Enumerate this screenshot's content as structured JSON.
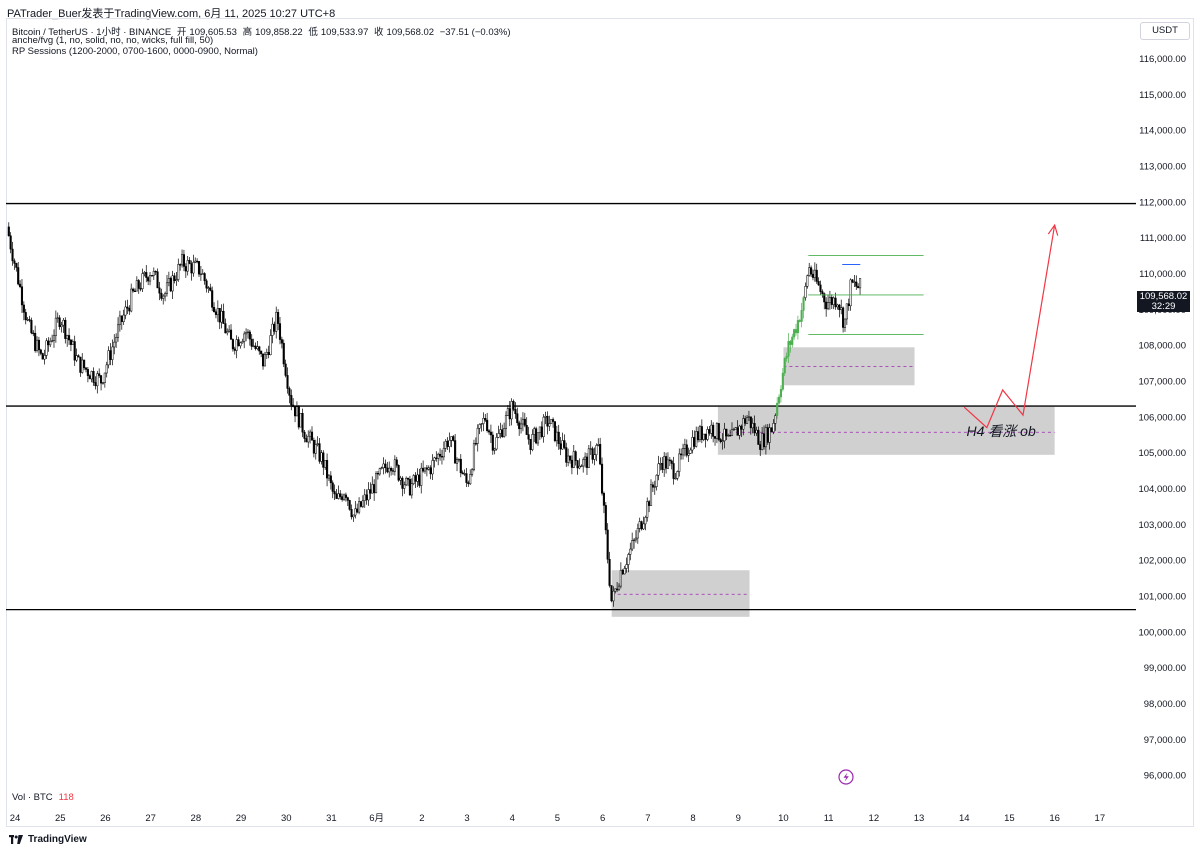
{
  "header": {
    "publisher_line": "PATrader_Buer发表于TradingView.com,  6月 11, 2025 10:27 UTC+8",
    "symbol_line": "Bitcoin / TetherUS · 1小时 · BINANCE",
    "ohlc": {
      "open_label": "开",
      "open": "109,605.53",
      "high_label": "高",
      "high": "109,858.22",
      "low_label": "低",
      "low": "109,533.97",
      "close_label": "收",
      "close": "109,568.02",
      "change": "−37.51 (−0.03%)"
    },
    "indicator1": "anche/fvg (1, no, solid, no, no, wicks, full fill, 50)",
    "indicator2": "RP Sessions (1200-2000, 0700-1600, 0000-0900, Normal)"
  },
  "price_axis": {
    "unit": "USDT",
    "current_price": "109,568.02",
    "countdown": "32:29"
  },
  "volume": {
    "label": "Vol · BTC",
    "value": "118"
  },
  "footer": {
    "brand": "TradingView"
  },
  "icons": [
    "tradingview-logo-icon",
    "lightning-icon"
  ],
  "colors": {
    "up": "#ffffff",
    "down": "#000000",
    "recent": "#4caf50",
    "zone": "#c8c8c8",
    "arrow": "#f23645",
    "midline": "#9c27b0",
    "rangeline": "#4caf50",
    "hline": "#000000"
  },
  "chart_data": {
    "type": "candlestick",
    "title": "Bitcoin / TetherUS · 1小时 · BINANCE",
    "y_ticks": [
      96000,
      97000,
      98000,
      99000,
      100000,
      101000,
      102000,
      103000,
      104000,
      105000,
      106000,
      107000,
      108000,
      109000,
      110000,
      111000,
      112000,
      113000,
      114000,
      115000,
      116000
    ],
    "y_tick_labels": [
      "96,000.00",
      "97,000.00",
      "98,000.00",
      "99,000.00",
      "100,000.00",
      "101,000.00",
      "102,000.00",
      "103,000.00",
      "104,000.00",
      "105,000.00",
      "106,000.00",
      "107,000.00",
      "108,000.00",
      "109,000.00",
      "110,000.00",
      "111,000.00",
      "112,000.00",
      "113,000.00",
      "114,000.00",
      "115,000.00",
      "116,000.00"
    ],
    "ylim": [
      95700,
      117100
    ],
    "x_ticks": [
      "24",
      "25",
      "26",
      "27",
      "28",
      "29",
      "30",
      "31",
      "6月",
      "2",
      "3",
      "4",
      "5",
      "6",
      "7",
      "8",
      "9",
      "10",
      "11",
      "12",
      "13",
      "14",
      "15",
      "16",
      "17"
    ],
    "x_tick_days": [
      0,
      1,
      2,
      3,
      4,
      5,
      6,
      7,
      8,
      9,
      10,
      11,
      12,
      13,
      14,
      15,
      16,
      17,
      18,
      19,
      20,
      21,
      22,
      23,
      24
    ],
    "xlim_days": [
      -0.2,
      24.8
    ],
    "anchors": [
      [
        -0.18,
        111300
      ],
      [
        0.3,
        108500
      ],
      [
        0.6,
        107600
      ],
      [
        1.0,
        108800
      ],
      [
        1.4,
        107500
      ],
      [
        1.9,
        107000
      ],
      [
        2.3,
        108500
      ],
      [
        2.6,
        109400
      ],
      [
        3.0,
        110100
      ],
      [
        3.3,
        109400
      ],
      [
        3.7,
        110300
      ],
      [
        4.1,
        110100
      ],
      [
        4.4,
        109200
      ],
      [
        4.8,
        108000
      ],
      [
        5.1,
        108400
      ],
      [
        5.5,
        107500
      ],
      [
        5.8,
        108800
      ],
      [
        6.1,
        106500
      ],
      [
        6.4,
        105600
      ],
      [
        6.8,
        104800
      ],
      [
        7.1,
        103600
      ],
      [
        7.3,
        104000
      ],
      [
        7.5,
        103200
      ],
      [
        7.9,
        104000
      ],
      [
        8.3,
        104800
      ],
      [
        8.7,
        104000
      ],
      [
        9.2,
        104600
      ],
      [
        9.6,
        105400
      ],
      [
        10.0,
        104100
      ],
      [
        10.2,
        105300
      ],
      [
        10.4,
        106000
      ],
      [
        10.6,
        105200
      ],
      [
        11.0,
        106300
      ],
      [
        11.4,
        105300
      ],
      [
        11.8,
        105900
      ],
      [
        12.2,
        104900
      ],
      [
        12.6,
        104700
      ],
      [
        12.9,
        105200
      ],
      [
        13.05,
        103000
      ],
      [
        13.2,
        100800
      ],
      [
        13.4,
        101700
      ],
      [
        13.7,
        102500
      ],
      [
        14.0,
        103600
      ],
      [
        14.3,
        104800
      ],
      [
        14.6,
        104500
      ],
      [
        15.0,
        105400
      ],
      [
        15.4,
        105700
      ],
      [
        15.8,
        105300
      ],
      [
        16.2,
        106000
      ],
      [
        16.5,
        105300
      ],
      [
        16.75,
        105700
      ],
      [
        16.95,
        107000
      ],
      [
        17.1,
        107900
      ],
      [
        17.3,
        108600
      ],
      [
        17.45,
        109200
      ],
      [
        17.55,
        110200
      ],
      [
        17.75,
        109700
      ],
      [
        17.95,
        109200
      ],
      [
        18.2,
        109300
      ],
      [
        18.35,
        108600
      ],
      [
        18.5,
        109700
      ],
      [
        18.7,
        109600
      ]
    ],
    "horizontal_lines": [
      111950,
      106300,
      100620
    ],
    "ob_zones": [
      {
        "from_day": 15.55,
        "to_day": 23.0,
        "low": 104940,
        "high": 106280,
        "mid": 105570
      },
      {
        "from_day": 17.0,
        "to_day": 19.9,
        "low": 106880,
        "high": 107940,
        "mid": 107400
      },
      {
        "from_day": 13.2,
        "to_day": 16.25,
        "low": 100420,
        "high": 101720,
        "mid": 101050
      }
    ],
    "range_lines": [
      {
        "from_day": 17.55,
        "to_day": 20.1,
        "price": 110500
      },
      {
        "from_day": 17.55,
        "to_day": 20.1,
        "price": 109400
      },
      {
        "from_day": 17.55,
        "to_day": 20.1,
        "price": 108300
      },
      {
        "from_day": 18.3,
        "to_day": 18.7,
        "price": 110250
      }
    ],
    "annotation": {
      "text": "H4 看涨 ob",
      "day": 21.05,
      "price": 105600
    },
    "projection_path": [
      [
        21.0,
        106270
      ],
      [
        21.5,
        105700
      ],
      [
        21.85,
        106750
      ],
      [
        22.3,
        106050
      ],
      [
        23.0,
        111350
      ]
    ]
  }
}
